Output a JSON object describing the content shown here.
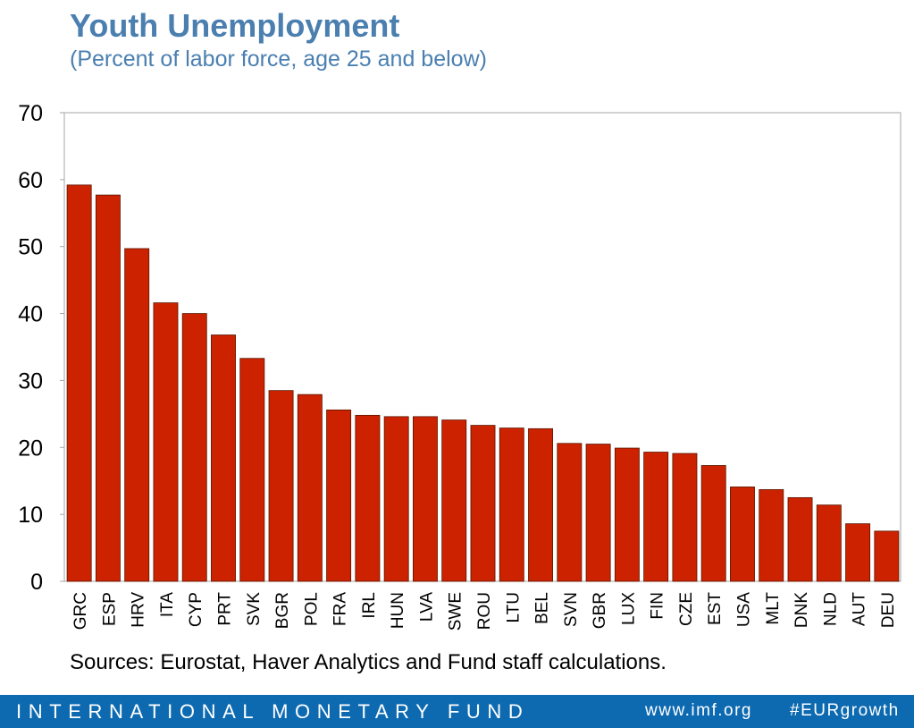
{
  "header": {
    "title": "Youth Unemployment",
    "subtitle": "(Percent of labor force, age 25 and below)"
  },
  "chart_data": {
    "type": "bar",
    "title": "Youth Unemployment",
    "subtitle": "(Percent of labor force, age 25 and below)",
    "xlabel": "",
    "ylabel": "",
    "ylim": [
      0,
      70
    ],
    "yticks": [
      0,
      10,
      20,
      30,
      40,
      50,
      60,
      70
    ],
    "grid": false,
    "legend": "none",
    "bar_color": "#cc2200",
    "categories": [
      "GRC",
      "ESP",
      "HRV",
      "ITA",
      "CYP",
      "PRT",
      "SVK",
      "BGR",
      "POL",
      "FRA",
      "IRL",
      "HUN",
      "LVA",
      "SWE",
      "ROU",
      "LTU",
      "BEL",
      "SVN",
      "GBR",
      "LUX",
      "FIN",
      "CZE",
      "EST",
      "USA",
      "MLT",
      "DNK",
      "NLD",
      "AUT",
      "DEU"
    ],
    "values": [
      59.2,
      57.7,
      49.7,
      41.6,
      40.0,
      36.8,
      33.3,
      28.5,
      27.9,
      25.6,
      24.8,
      24.6,
      24.6,
      24.1,
      23.3,
      22.9,
      22.8,
      20.6,
      20.5,
      19.9,
      19.3,
      19.1,
      17.3,
      14.1,
      13.7,
      12.5,
      11.4,
      8.6,
      7.5
    ]
  },
  "sources": "Sources: Eurostat, Haver Analytics and Fund staff calculations.",
  "footer": {
    "org": "INTERNATIONAL MONETARY FUND",
    "url": "www.imf.org",
    "hashtag": "#EURgrowth",
    "background": "#0e6ab0"
  }
}
